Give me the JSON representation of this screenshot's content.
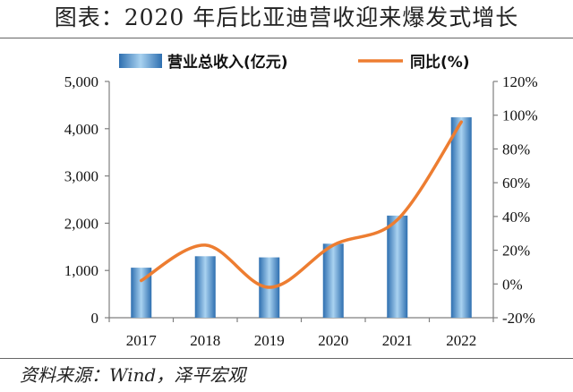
{
  "title": "图表：2020 年后比亚迪营收迎来爆发式增长",
  "source": "资料来源：Wind，泽平宏观",
  "colors": {
    "bar_dark": "#2e6fb0",
    "bar_light": "#a9d2f0",
    "line": "#ed7d31",
    "axis": "#7f7f7f"
  },
  "chart_data": {
    "type": "bar",
    "categories": [
      "2017",
      "2018",
      "2019",
      "2020",
      "2021",
      "2022"
    ],
    "series": [
      {
        "name": "营业总收入(亿元)",
        "type": "bar",
        "axis": "left",
        "values": [
          1059,
          1301,
          1277,
          1566,
          2161,
          4241
        ]
      },
      {
        "name": "同比(%)",
        "type": "line",
        "axis": "right",
        "values": [
          2,
          23,
          -2,
          23,
          38,
          96
        ]
      }
    ],
    "ylim_left": [
      0,
      5000
    ],
    "yticks_left": [
      "0",
      "1,000",
      "2,000",
      "3,000",
      "4,000",
      "5,000"
    ],
    "ylim_right": [
      -20,
      120
    ],
    "yticks_right": [
      "-20%",
      "0%",
      "20%",
      "40%",
      "60%",
      "80%",
      "100%",
      "120%"
    ],
    "legend_position": "top",
    "grid": false
  }
}
